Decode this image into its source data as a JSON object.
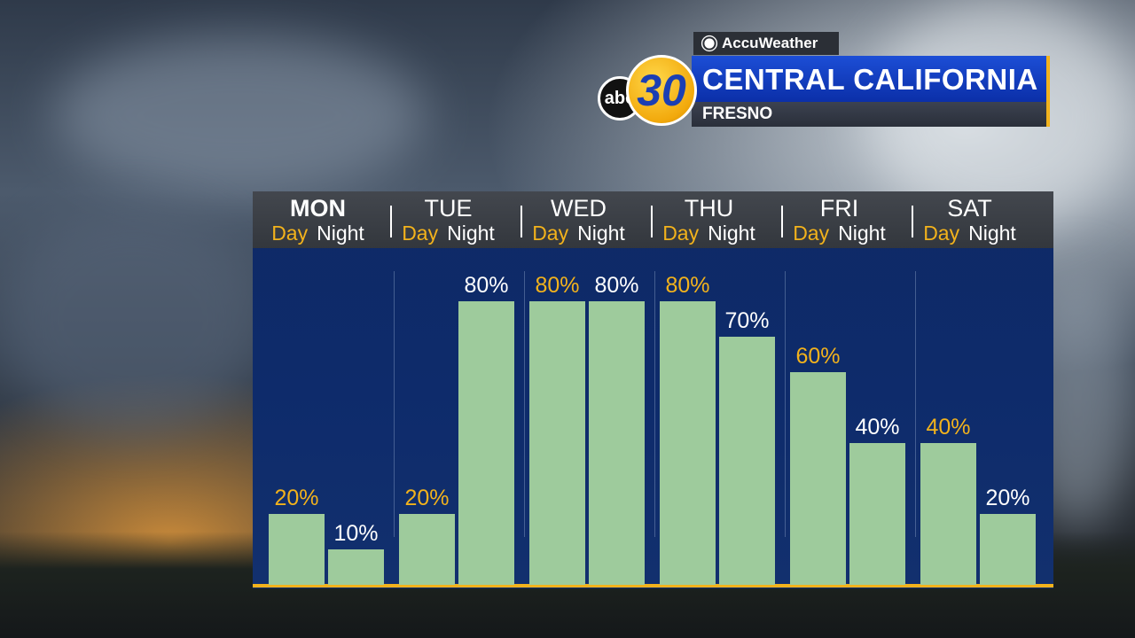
{
  "branding": {
    "accuweather": "AccuWeather",
    "abc": "abc",
    "channel": "30",
    "region": "CENTRAL CALIFORNIA",
    "city": "FRESNO"
  },
  "colors": {
    "bar": "#9ecb9c",
    "day_label": "#f2b21c",
    "night_label": "#ffffff",
    "accent": "#f2b21c"
  },
  "chart_data": {
    "type": "bar",
    "title": "",
    "ylim": [
      0,
      100
    ],
    "days": [
      {
        "name": "MON",
        "day_label": "Day",
        "night_label": "Night",
        "day": 20,
        "night": 10
      },
      {
        "name": "TUE",
        "day_label": "Day",
        "night_label": "Night",
        "day": 20,
        "night": 80
      },
      {
        "name": "WED",
        "day_label": "Day",
        "night_label": "Night",
        "day": 80,
        "night": 80
      },
      {
        "name": "THU",
        "day_label": "Day",
        "night_label": "Night",
        "day": 80,
        "night": 70
      },
      {
        "name": "FRI",
        "day_label": "Day",
        "night_label": "Night",
        "day": 60,
        "night": 40
      },
      {
        "name": "SAT",
        "day_label": "Day",
        "night_label": "Night",
        "day": 40,
        "night": 20
      }
    ],
    "value_suffix": "%"
  }
}
